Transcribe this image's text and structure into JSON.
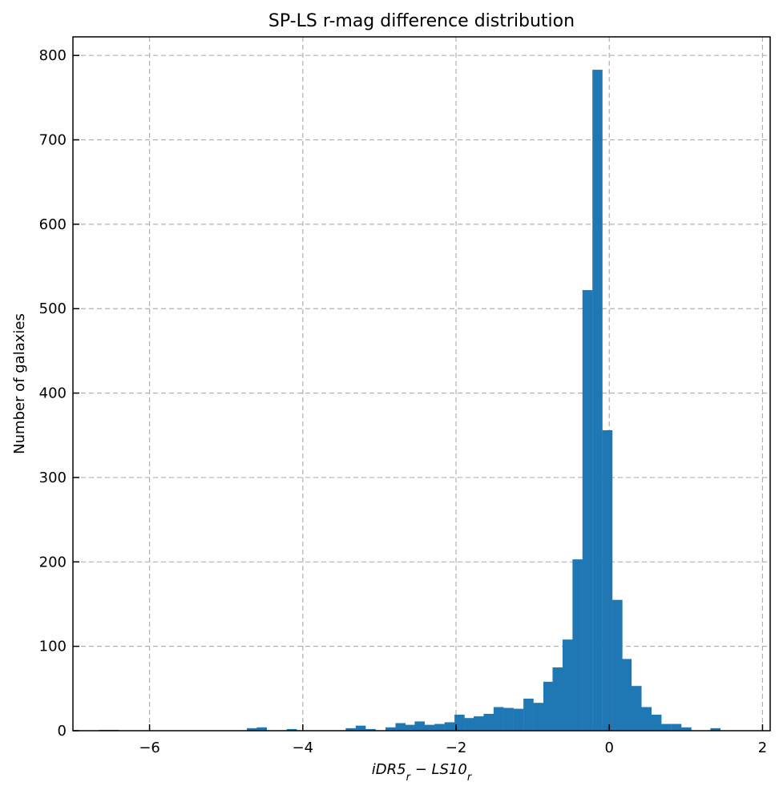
{
  "chart_data": {
    "type": "bar",
    "title": "SP-LS r-mag difference distribution",
    "xlabel": "iDR5_r − LS10_r",
    "xlabel_parts": {
      "a": "iDR5",
      "a_sub": "r",
      "op": " − ",
      "b": "LS10",
      "b_sub": "r"
    },
    "ylabel": "Number of galaxies",
    "xlim": [
      -7.0,
      2.1
    ],
    "ylim": [
      0,
      822
    ],
    "grid": true,
    "xticks": [
      -6,
      -4,
      -2,
      0,
      2
    ],
    "xtick_labels": [
      "−6",
      "−4",
      "−2",
      "0",
      "2"
    ],
    "yticks": [
      0,
      100,
      200,
      300,
      400,
      500,
      600,
      700,
      800
    ],
    "ytick_labels": [
      "0",
      "100",
      "200",
      "300",
      "400",
      "500",
      "600",
      "700",
      "800"
    ],
    "bin_width": 0.1285,
    "bin_starts": [
      -6.66,
      -6.53,
      -6.4,
      -6.27,
      -6.14,
      -6.01,
      -5.88,
      -5.76,
      -5.63,
      -5.5,
      -5.37,
      -5.24,
      -5.11,
      -4.98,
      -4.86,
      -4.73,
      -4.6,
      -4.47,
      -4.34,
      -4.21,
      -4.08,
      -3.95,
      -3.82,
      -3.7,
      -3.57,
      -3.44,
      -3.31,
      -3.18,
      -3.05,
      -2.92,
      -2.79,
      -2.67,
      -2.54,
      -2.41,
      -2.28,
      -2.15,
      -2.02,
      -1.89,
      -1.77,
      -1.64,
      -1.51,
      -1.38,
      -1.25,
      -1.12,
      -0.99,
      -0.86,
      -0.74,
      -0.61,
      -0.48,
      -0.35,
      -0.22,
      -0.09,
      0.04,
      0.16,
      0.29,
      0.42,
      0.55,
      0.68,
      0.81,
      0.94,
      1.07,
      1.19,
      1.32,
      1.45,
      1.58
    ],
    "values": [
      1,
      1,
      0,
      0,
      0,
      0,
      0,
      0,
      0,
      0,
      0,
      0,
      0,
      0,
      0,
      3,
      4,
      0,
      0,
      2,
      0,
      0,
      0,
      0,
      0,
      3,
      6,
      2,
      0,
      4,
      9,
      7,
      11,
      7,
      8,
      10,
      19,
      15,
      17,
      20,
      28,
      27,
      26,
      38,
      33,
      58,
      75,
      108,
      203,
      522,
      783,
      356,
      155,
      85,
      53,
      28,
      19,
      8,
      8,
      4,
      0,
      0,
      3,
      0,
      0
    ]
  }
}
